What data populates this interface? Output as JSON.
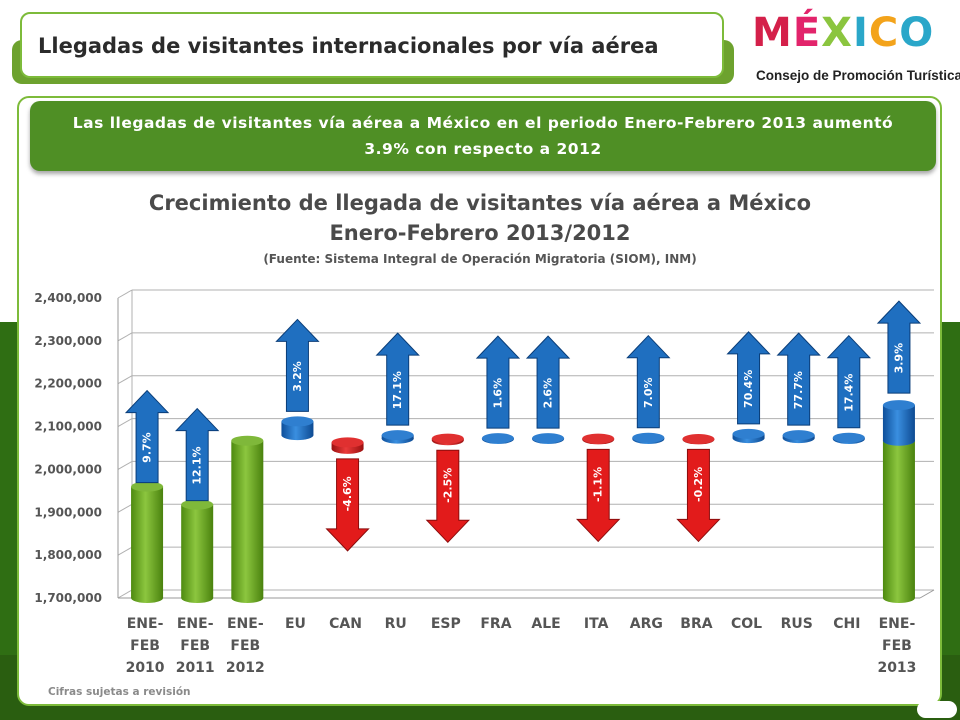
{
  "header": {
    "title": "Llegadas de visitantes internacionales por vía aérea"
  },
  "logo": {
    "letters": [
      {
        "ch": "M",
        "color": "#d4204a"
      },
      {
        "ch": "É",
        "color": "#e2246b"
      },
      {
        "ch": "X",
        "color": "#8bc53f"
      },
      {
        "ch": "I",
        "color": "#2aa7c9"
      },
      {
        "ch": "C",
        "color": "#f3a31b"
      },
      {
        "ch": "O",
        "color": "#2aa7c9"
      }
    ],
    "subtitle": "Consejo de Promoción Turística"
  },
  "banner": {
    "line1": "Las llegadas de visitantes vía aérea  a México en el periodo Enero-Febrero 2013 aumentó",
    "line2": "3.9% con respecto a 2012"
  },
  "chart_data": {
    "type": "bar",
    "title": "Crecimiento de llegada de visitantes vía aérea a México",
    "subtitle": "Enero-Febrero  2013/2012",
    "source": "(Fuente: Sistema Integral de Operación Migratoria (SIOM), INM)",
    "ylim": [
      1700000,
      2400000
    ],
    "yticks": [
      "1,700,000",
      "1,800,000",
      "1,900,000",
      "2,000,000",
      "2,100,000",
      "2,200,000",
      "2,300,000",
      "2,400,000"
    ],
    "ytick_values": [
      1700000,
      1800000,
      1900000,
      2000000,
      2100000,
      2200000,
      2300000,
      2400000
    ],
    "categories": [
      [
        "ENE-",
        "FEB",
        "2010"
      ],
      [
        "ENE-",
        "FEB",
        "2011"
      ],
      [
        "ENE-",
        "FEB",
        "2012"
      ],
      [
        "EU"
      ],
      [
        "CAN"
      ],
      [
        "RU"
      ],
      [
        "ESP"
      ],
      [
        "FRA"
      ],
      [
        "ALE"
      ],
      [
        "ITA"
      ],
      [
        "ARG"
      ],
      [
        "BRA"
      ],
      [
        "COL"
      ],
      [
        "RUS"
      ],
      [
        "CHI"
      ],
      [
        "ENE-",
        "FEB",
        "2013"
      ]
    ],
    "totals": [
      {
        "index": 0,
        "value": 1960000
      },
      {
        "index": 1,
        "value": 1918000
      },
      {
        "index": 2,
        "value": 2067000
      },
      {
        "index": 15,
        "value": 2067000
      }
    ],
    "contributions": [
      {
        "index": 3,
        "start": 2080000,
        "end": 2112000
      },
      {
        "index": 4,
        "start": 2063000,
        "end": 2048000
      },
      {
        "index": 5,
        "start": 2072000,
        "end": 2080000
      },
      {
        "index": 6,
        "start": 2072000,
        "end": 2068000
      },
      {
        "index": 7,
        "start": 2071000,
        "end": 2073000
      },
      {
        "index": 8,
        "start": 2071000,
        "end": 2073000
      },
      {
        "index": 9,
        "start": 2072000,
        "end": 2070000
      },
      {
        "index": 10,
        "start": 2071000,
        "end": 2074000
      },
      {
        "index": 11,
        "start": 2071000,
        "end": 2070000
      },
      {
        "index": 12,
        "start": 2073000,
        "end": 2083000
      },
      {
        "index": 13,
        "start": 2073000,
        "end": 2080000
      },
      {
        "index": 14,
        "start": 2071000,
        "end": 2074000
      },
      {
        "index": 15,
        "start": 2067000,
        "end": 2150000
      }
    ],
    "growth_labels": [
      {
        "index": 0,
        "label": "9.7%",
        "direction": "up"
      },
      {
        "index": 1,
        "label": "12.1%",
        "direction": "up"
      },
      {
        "index": 3,
        "label": "3.2%",
        "direction": "up"
      },
      {
        "index": 4,
        "label": "-4.6%",
        "direction": "down"
      },
      {
        "index": 5,
        "label": "17.1%",
        "direction": "up"
      },
      {
        "index": 6,
        "label": "-2.5%",
        "direction": "down"
      },
      {
        "index": 7,
        "label": "1.6%",
        "direction": "up"
      },
      {
        "index": 8,
        "label": "2.6%",
        "direction": "up"
      },
      {
        "index": 9,
        "label": "-1.1%",
        "direction": "down"
      },
      {
        "index": 10,
        "label": "7.0%",
        "direction": "up"
      },
      {
        "index": 11,
        "label": "-0.2%",
        "direction": "down"
      },
      {
        "index": 12,
        "label": "70.4%",
        "direction": "up"
      },
      {
        "index": 13,
        "label": "77.7%",
        "direction": "up"
      },
      {
        "index": 14,
        "label": "17.4%",
        "direction": "up"
      },
      {
        "index": 15,
        "label": "3.9%",
        "direction": "up"
      }
    ],
    "colors": {
      "total": "#6aa51e",
      "positive": "#1f6fc0",
      "negative": "#d81e1e",
      "arrow_up": "#1f6fc0",
      "arrow_down": "#e21b1b"
    },
    "grid": true
  },
  "footer": {
    "note": "Cifras sujetas a revisión"
  }
}
